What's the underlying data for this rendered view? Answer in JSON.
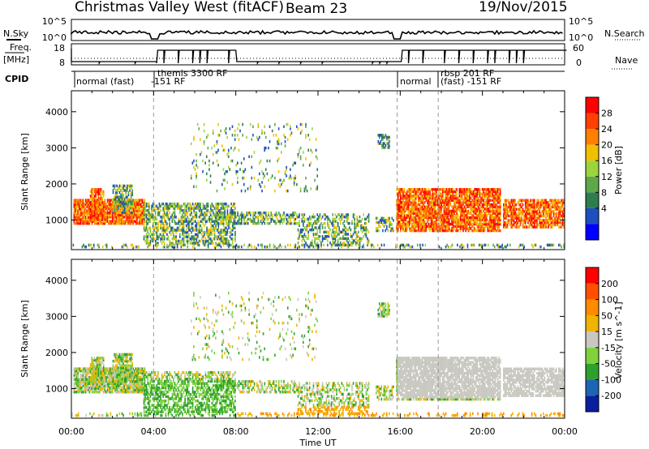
{
  "header": {
    "title": "Christmas Valley West (fitACF)",
    "beam": "Beam 23",
    "date": "19/Nov/2015"
  },
  "side_labels": {
    "nsky": "N.Sky",
    "freq": "Freq.",
    "freq_unit": "[MHz]",
    "cpid": "CPID",
    "nsearch": "N.Search",
    "nave": "Nave"
  },
  "top_axes": {
    "nsky_ticks": [
      "10^5",
      "10^0"
    ],
    "freq_ticks": [
      "18",
      "8"
    ],
    "nave_ticks": [
      "60",
      "0"
    ],
    "nsearch_ticks": [
      "10^5",
      "10^0"
    ]
  },
  "cpid_labels": [
    {
      "text": "normal (fast)",
      "start_hour": 0.0
    },
    {
      "text": "-151 RF",
      "start_hour": 4.0
    },
    {
      "text": "themis 3300 RF",
      "start_hour": 4.0
    },
    {
      "text": "normal",
      "start_hour": 16.0
    },
    {
      "text": "rbsp 201 RF",
      "start_hour": 17.8
    },
    {
      "text": "(fast) -151 RF",
      "start_hour": 17.8
    }
  ],
  "chart_data": [
    {
      "type": "heatmap",
      "name": "Power",
      "xlabel": "",
      "ylabel": "Slant Range [km]",
      "x_ticks": [
        "00:00",
        "04:00",
        "08:00",
        "12:00",
        "16:00",
        "20:00",
        "00:00"
      ],
      "xlim_hours": [
        0,
        24
      ],
      "y_ticks": [
        1000,
        2000,
        3000,
        4000
      ],
      "ylim_km": [
        180,
        4580
      ],
      "colorbar": {
        "label": "Power [dB]",
        "ticks": [
          "28",
          "24",
          "20",
          "16",
          "12",
          "8",
          "4"
        ],
        "colors": [
          "#0000ff",
          "#1f4fbf",
          "#2e7d4f",
          "#5fa84a",
          "#9cd43c",
          "#f0c000",
          "#ff8000",
          "#ff4000",
          "#ff0000"
        ]
      },
      "dashed_vertical_hours": [
        4.0,
        15.85,
        17.85
      ]
    },
    {
      "type": "heatmap",
      "name": "Velocity",
      "xlabel": "Time UT",
      "ylabel": "Slant Range [km]",
      "x_ticks": [
        "00:00",
        "04:00",
        "08:00",
        "12:00",
        "16:00",
        "20:00",
        "00:00"
      ],
      "xlim_hours": [
        0,
        24
      ],
      "y_ticks": [
        1000,
        2000,
        3000,
        4000
      ],
      "ylim_km": [
        180,
        4580
      ],
      "colorbar": {
        "label": "Velocity [m s^-1]",
        "ticks": [
          "200",
          "100",
          "50",
          "15",
          "-15",
          "-50",
          "-100",
          "-200"
        ],
        "colors": [
          "#0a1ea0",
          "#1e64b4",
          "#2ea02e",
          "#7fd23c",
          "#c8c8c0",
          "#f0b400",
          "#ff8c00",
          "#ff5000",
          "#ff0000"
        ]
      },
      "dashed_vertical_hours": [
        4.0,
        15.85,
        17.85
      ]
    }
  ]
}
